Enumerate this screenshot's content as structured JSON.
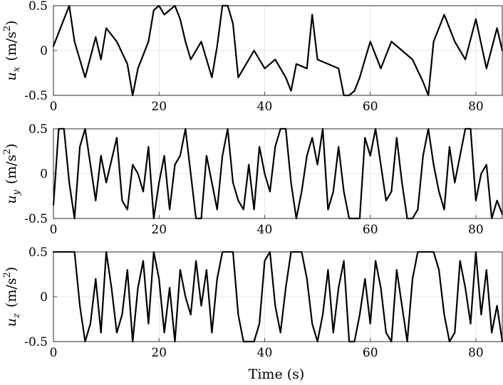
{
  "figure": {
    "xlabel": "Time (s)",
    "line_color": "#000000",
    "grid_color": "#dedede"
  },
  "chart_data": [
    {
      "type": "line",
      "title": "",
      "ylabel": {
        "var": "u",
        "sub": "x",
        "unit": "(m/s",
        "sup": "2",
        "close": ")"
      },
      "xlim": [
        0,
        85
      ],
      "ylim": [
        -0.5,
        0.5
      ],
      "xticks": [
        0,
        20,
        40,
        60,
        80
      ],
      "xtick_labels": [
        "0",
        "20",
        "40",
        "60",
        "80"
      ],
      "yticks": [
        0.5,
        0,
        -0.5
      ],
      "ytick_labels": [
        "0.5",
        "0",
        "-0.5"
      ],
      "grid": true,
      "series": [
        {
          "x": [
            0,
            2,
            3,
            4,
            6,
            8,
            9,
            10,
            12,
            14,
            15,
            16,
            18,
            19,
            20,
            21,
            23,
            24,
            25,
            26,
            28,
            30,
            31,
            32,
            33,
            34,
            35,
            36,
            38,
            40,
            42,
            44,
            45,
            46,
            48,
            49,
            50,
            52,
            54,
            55,
            56,
            57,
            58,
            59,
            60,
            62,
            64,
            66,
            68,
            70,
            71,
            72,
            74,
            76,
            78,
            80,
            82,
            84,
            85
          ],
          "y": [
            0.05,
            0.35,
            0.5,
            0.1,
            -0.3,
            0.15,
            -0.1,
            0.25,
            0.1,
            -0.15,
            -0.5,
            -0.2,
            0.1,
            0.45,
            0.5,
            0.4,
            0.5,
            0.35,
            0.1,
            -0.1,
            0.1,
            -0.3,
            0.05,
            0.5,
            0.5,
            0.3,
            -0.3,
            -0.2,
            0.0,
            -0.2,
            -0.1,
            -0.3,
            -0.45,
            -0.15,
            -0.2,
            0.4,
            -0.1,
            -0.15,
            -0.2,
            -0.5,
            -0.5,
            -0.45,
            -0.3,
            -0.1,
            0.1,
            -0.2,
            0.1,
            0.0,
            -0.1,
            -0.35,
            -0.5,
            0.1,
            0.4,
            0.1,
            -0.1,
            0.35,
            -0.2,
            0.25,
            0.0
          ]
        }
      ]
    },
    {
      "type": "line",
      "title": "",
      "ylabel": {
        "var": "u",
        "sub": "y",
        "unit": "(m/s",
        "sup": "2",
        "close": ")"
      },
      "xlim": [
        0,
        85
      ],
      "ylim": [
        -0.5,
        0.5
      ],
      "xticks": [
        0,
        20,
        40,
        60,
        80
      ],
      "xtick_labels": [
        "0",
        "20",
        "40",
        "60",
        "80"
      ],
      "yticks": [
        0.5,
        0,
        -0.5
      ],
      "ytick_labels": [
        "0.5",
        "0",
        "-0.5"
      ],
      "grid": true,
      "series": [
        {
          "x": [
            0,
            1,
            2,
            3,
            4,
            5,
            6,
            8,
            9,
            10,
            12,
            13,
            14,
            15,
            16,
            17,
            18,
            19,
            20,
            21,
            22,
            23,
            24,
            25,
            26,
            27,
            28,
            29,
            30,
            31,
            32,
            33,
            34,
            35,
            36,
            37,
            38,
            39,
            40,
            41,
            42,
            43,
            44,
            45,
            46,
            47,
            48,
            49,
            50,
            51,
            52,
            53,
            54,
            55,
            56,
            57,
            58,
            59,
            60,
            61,
            62,
            63,
            64,
            65,
            66,
            67,
            68,
            69,
            70,
            71,
            72,
            73,
            74,
            75,
            76,
            77,
            78,
            79,
            80,
            81,
            82,
            83,
            84,
            85
          ],
          "y": [
            -0.35,
            0.5,
            0.5,
            -0.1,
            -0.5,
            0.3,
            0.5,
            -0.3,
            0.2,
            -0.1,
            0.4,
            -0.3,
            -0.4,
            0.1,
            0.0,
            -0.2,
            0.3,
            -0.5,
            -0.1,
            0.2,
            -0.4,
            0.1,
            0.2,
            0.5,
            0.0,
            -0.5,
            -0.5,
            0.2,
            -0.1,
            -0.4,
            0.2,
            0.5,
            -0.1,
            -0.3,
            -0.4,
            0.1,
            -0.4,
            0.3,
            0.0,
            -0.2,
            0.3,
            0.5,
            0.5,
            -0.1,
            -0.5,
            -0.2,
            0.2,
            0.4,
            0.1,
            0.5,
            -0.4,
            -0.2,
            0.3,
            -0.2,
            -0.5,
            -0.5,
            -0.5,
            0.4,
            0.2,
            0.5,
            0.1,
            -0.3,
            -0.2,
            0.4,
            -0.1,
            -0.5,
            -0.5,
            -0.4,
            0.2,
            0.5,
            0.1,
            -0.2,
            -0.4,
            0.3,
            -0.1,
            0.2,
            0.5,
            0.5,
            -0.3,
            0.0,
            0.1,
            -0.5,
            -0.3,
            -0.45
          ]
        }
      ]
    },
    {
      "type": "line",
      "title": "",
      "ylabel": {
        "var": "u",
        "sub": "z",
        "unit": "(m/s",
        "sup": "2",
        "close": ")"
      },
      "xlim": [
        0,
        85
      ],
      "ylim": [
        -0.5,
        0.5
      ],
      "xticks": [
        0,
        20,
        40,
        60,
        80
      ],
      "xtick_labels": [
        "0",
        "20",
        "40",
        "60",
        "80"
      ],
      "yticks": [
        0.5,
        0,
        -0.5
      ],
      "ytick_labels": [
        "0.5",
        "0",
        "-0.5"
      ],
      "grid": true,
      "series": [
        {
          "x": [
            0,
            4,
            5,
            6,
            7,
            8,
            9,
            10,
            11,
            12,
            13,
            14,
            15,
            16,
            17,
            18,
            19,
            20,
            21,
            22,
            23,
            24,
            25,
            26,
            27,
            28,
            29,
            30,
            31,
            32,
            33,
            34,
            35,
            36,
            37,
            38,
            39,
            40,
            41,
            42,
            43,
            44,
            45,
            46,
            47,
            48,
            49,
            50,
            51,
            52,
            53,
            54,
            55,
            56,
            57,
            58,
            59,
            60,
            61,
            62,
            63,
            64,
            65,
            66,
            67,
            68,
            69,
            70,
            71,
            72,
            73,
            74,
            75,
            76,
            77,
            78,
            79,
            80,
            81,
            82,
            83,
            84,
            85
          ],
          "y": [
            0.5,
            0.5,
            -0.1,
            -0.5,
            -0.3,
            0.2,
            -0.4,
            0.5,
            0.1,
            -0.4,
            -0.2,
            0.3,
            -0.5,
            0.1,
            0.4,
            -0.3,
            0.5,
            0.2,
            -0.4,
            0.1,
            -0.5,
            0.3,
            0.0,
            -0.2,
            0.4,
            -0.1,
            0.3,
            -0.4,
            0.2,
            0.5,
            0.5,
            0.5,
            -0.2,
            -0.5,
            -0.5,
            -0.5,
            -0.3,
            0.4,
            0.5,
            -0.1,
            -0.4,
            0.1,
            0.5,
            0.5,
            0.5,
            0.2,
            -0.3,
            -0.5,
            -0.2,
            0.3,
            -0.4,
            0.1,
            0.4,
            -0.5,
            -0.5,
            -0.2,
            0.2,
            -0.3,
            0.4,
            0.1,
            -0.4,
            -0.5,
            0.3,
            -0.1,
            -0.5,
            0.2,
            0.5,
            0.5,
            0.5,
            0.5,
            0.3,
            -0.2,
            -0.5,
            -0.4,
            0.4,
            0.1,
            -0.3,
            0.5,
            -0.2,
            0.3,
            -0.4,
            -0.1,
            -0.5
          ]
        }
      ]
    }
  ]
}
